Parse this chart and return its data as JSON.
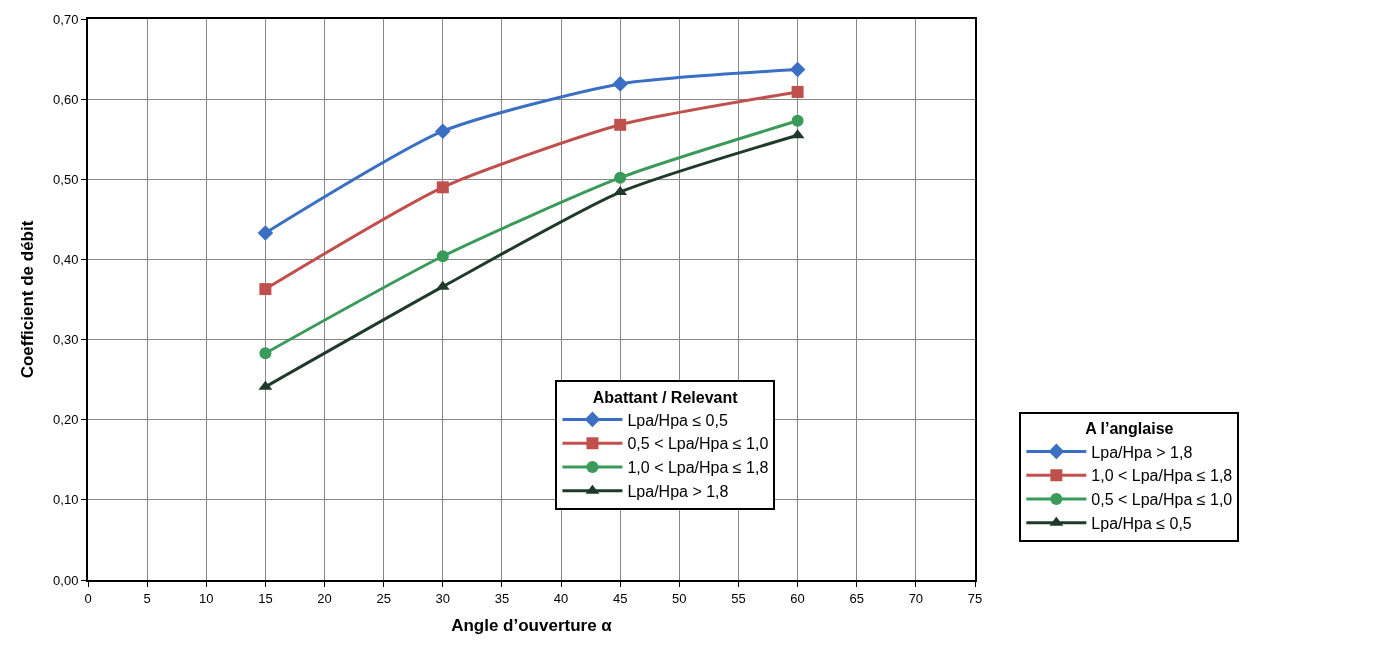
{
  "chart_data": {
    "type": "line",
    "xlabel": "Angle d’ouverture α",
    "ylabel": "Coefficient de débit",
    "legend_title": [
      "Abattant / Relevant",
      "A l’anglaise"
    ],
    "x": [
      15,
      30,
      45,
      60
    ],
    "series": [
      {
        "name": "Lpa/Hpa ≤ 0,5",
        "color": "#3a6fc4",
        "marker": "diamond",
        "values": [
          0.433,
          0.56,
          0.619,
          0.637
        ]
      },
      {
        "name": "0,5 < Lpa/Hpa ≤ 1,0",
        "color": "#c0504d",
        "marker": "square",
        "values": [
          0.363,
          0.49,
          0.568,
          0.609
        ]
      },
      {
        "name": "1,0 < Lpa/Hpa ≤ 1,8",
        "color": "#3a9a5a",
        "marker": "circle",
        "values": [
          0.283,
          0.404,
          0.502,
          0.573
        ]
      },
      {
        "name": "Lpa/Hpa > 1,8",
        "color": "#1f3a2a",
        "marker": "triangle",
        "values": [
          0.241,
          0.366,
          0.484,
          0.555
        ]
      },
      {
        "name": "Lpa/Hpa > 1,8",
        "color": "#3a6fc4",
        "marker": "diamond",
        "values": [
          null,
          null,
          null,
          null
        ]
      },
      {
        "name": "1,0 < Lpa/Hpa ≤ 1,8",
        "color": "#c0504d",
        "marker": "square",
        "values": [
          null,
          null,
          null,
          null
        ]
      },
      {
        "name": "0,5 < Lpa/Hpa ≤ 1,0",
        "color": "#3a9a5a",
        "marker": "circle",
        "values": [
          null,
          null,
          null,
          null
        ]
      },
      {
        "name": "Lpa/Hpa ≤ 0,5",
        "color": "#1f3a2a",
        "marker": "triangle",
        "values": [
          null,
          null,
          null,
          null
        ]
      }
    ],
    "xlim": [
      0,
      75
    ],
    "xticks": [
      0,
      5,
      10,
      15,
      20,
      25,
      30,
      35,
      40,
      45,
      50,
      55,
      60,
      65,
      70,
      75
    ],
    "ylim": [
      0,
      0.7
    ],
    "yticks": [
      {
        "value": 0,
        "label": "0,00"
      },
      {
        "value": 0.1,
        "label": "0,10"
      },
      {
        "value": 0.2,
        "label": "0,20"
      },
      {
        "value": 0.3,
        "label": "0,30"
      },
      {
        "value": 0.4,
        "label": "0,40"
      },
      {
        "value": 0.5,
        "label": "0,50"
      },
      {
        "value": 0.6,
        "label": "0,60"
      },
      {
        "value": 0.7,
        "label": "0,70"
      }
    ],
    "grid": true,
    "legend": "bottom right",
    "line_style": "solid"
  }
}
